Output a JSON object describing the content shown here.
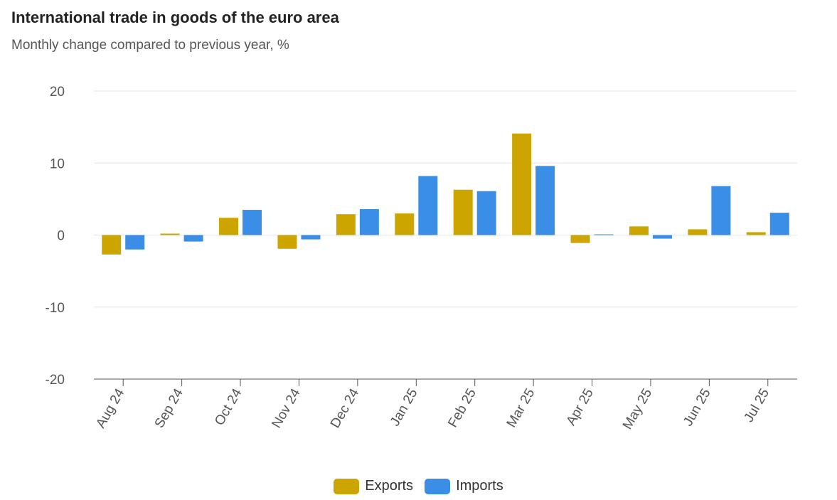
{
  "title": "International trade in goods of the euro area",
  "subtitle": "Monthly change compared to previous year, %",
  "chart_data": {
    "type": "bar",
    "categories": [
      "Aug 24",
      "Sep 24",
      "Oct 24",
      "Nov 24",
      "Dec 24",
      "Jan 25",
      "Feb 25",
      "Mar 25",
      "Apr 25",
      "May 25",
      "Jun 25",
      "Jul 25"
    ],
    "series": [
      {
        "name": "Exports",
        "color": "#cda500",
        "values": [
          -2.7,
          0.2,
          2.4,
          -1.9,
          2.9,
          3.0,
          6.3,
          14.1,
          -1.1,
          1.2,
          0.8,
          0.4
        ]
      },
      {
        "name": "Imports",
        "color": "#3a8ee6",
        "values": [
          -2.0,
          -0.9,
          3.5,
          -0.6,
          3.6,
          8.2,
          6.1,
          9.6,
          0.1,
          -0.5,
          6.8,
          3.1
        ]
      }
    ],
    "y_ticks": [
      20,
      10,
      0,
      -10,
      -20
    ],
    "ylim": [
      -20,
      20
    ],
    "grid": true,
    "legend_position": "bottom-center"
  }
}
